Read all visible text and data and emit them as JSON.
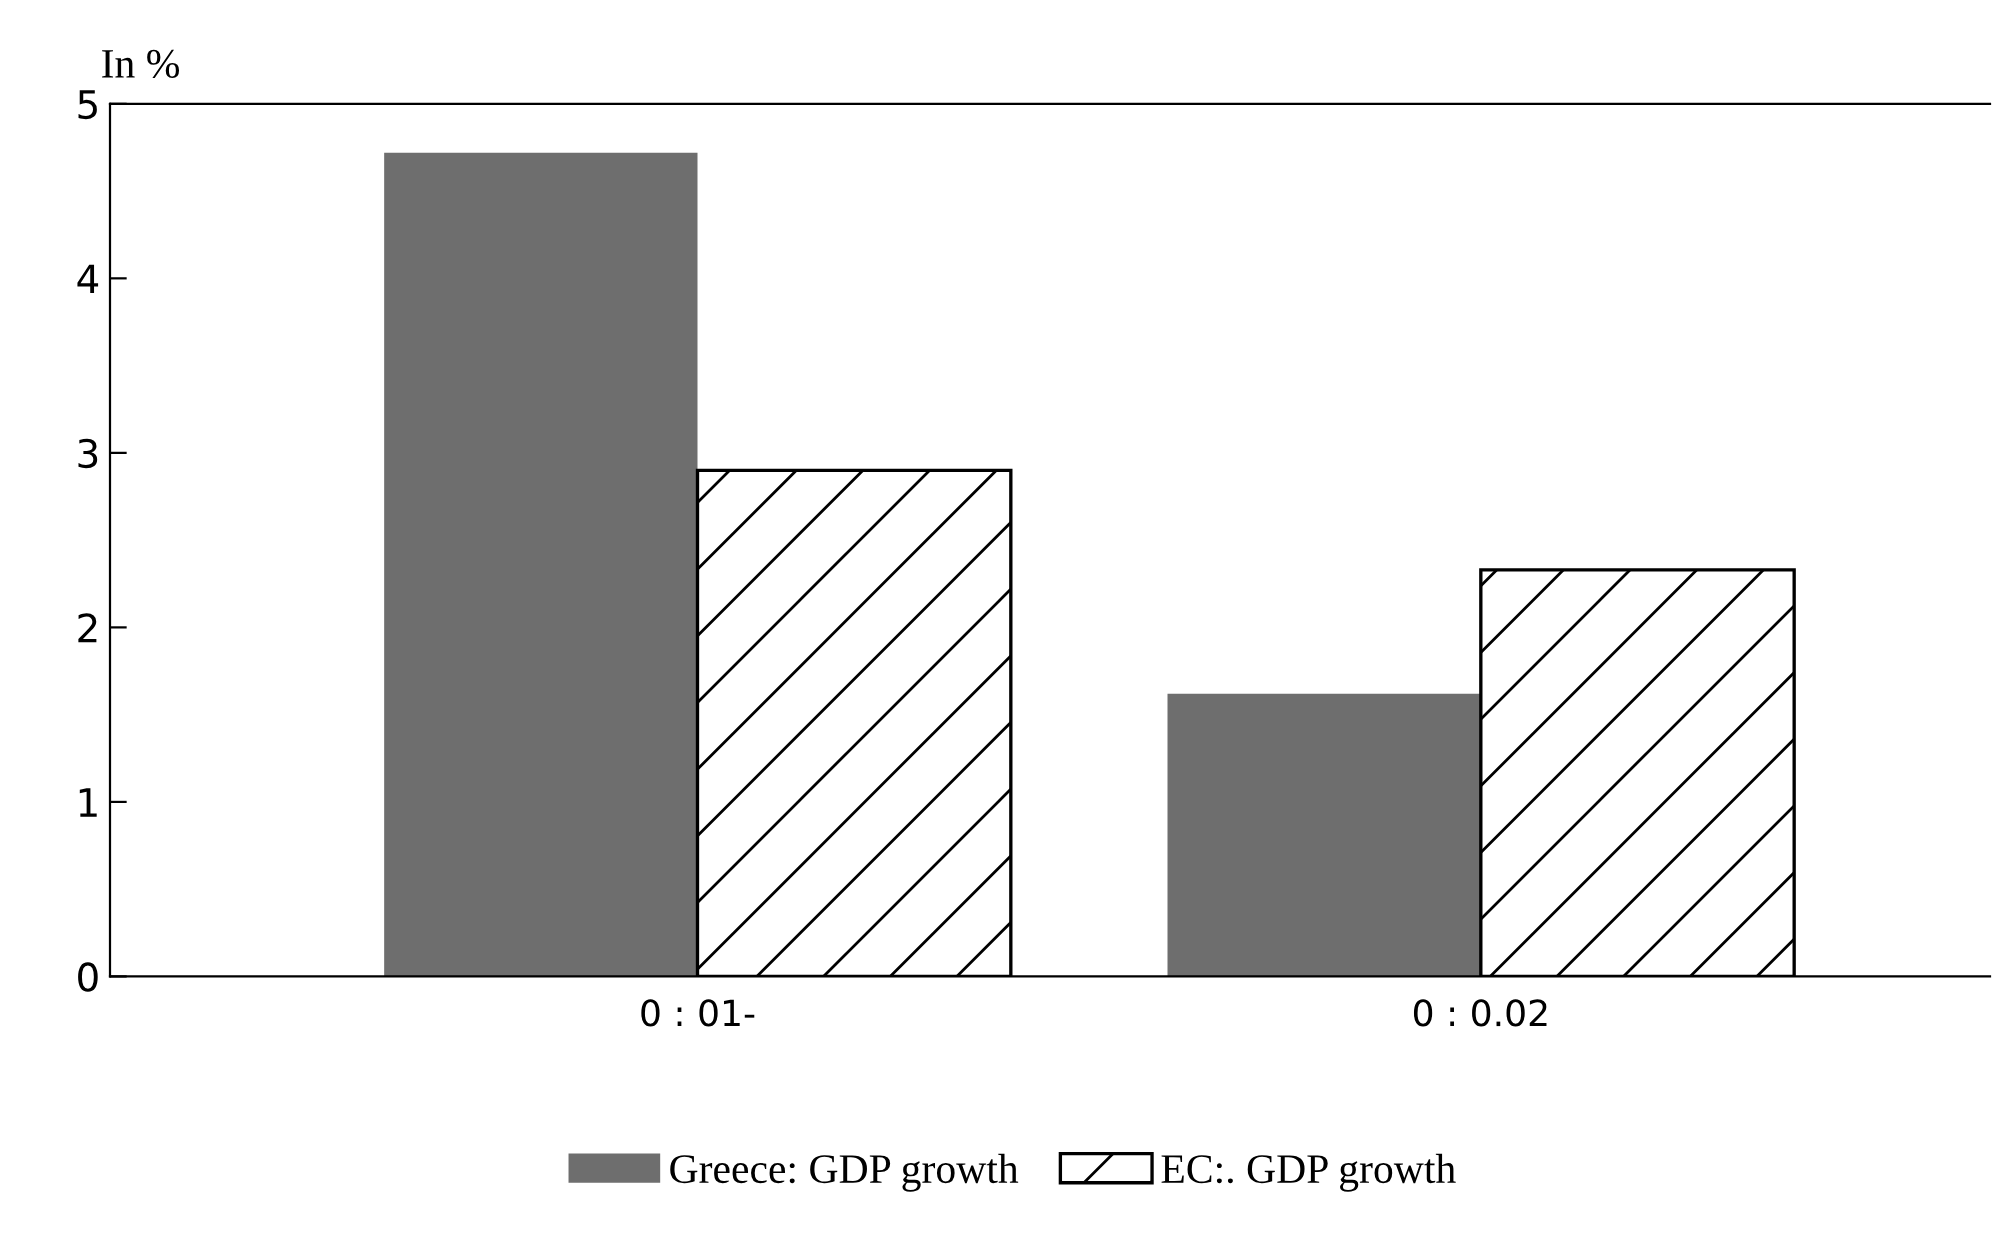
{
  "chart_data": {
    "type": "bar",
    "ylabel": "In %",
    "categories": [
      "0 : 01-",
      "0 : 0.02"
    ],
    "series": [
      {
        "name": "Greece: GDP growth",
        "color": "#6e6e6e",
        "values": [
          4.72,
          1.62
        ]
      },
      {
        "name": "EC:. GDP growth",
        "color": "#000000",
        "values": [
          2.9,
          2.33
        ]
      }
    ],
    "ylim": [
      0,
      5
    ],
    "yticks": [
      0,
      1,
      2,
      3,
      4,
      5
    ],
    "grid": false,
    "legend": "bottom"
  }
}
